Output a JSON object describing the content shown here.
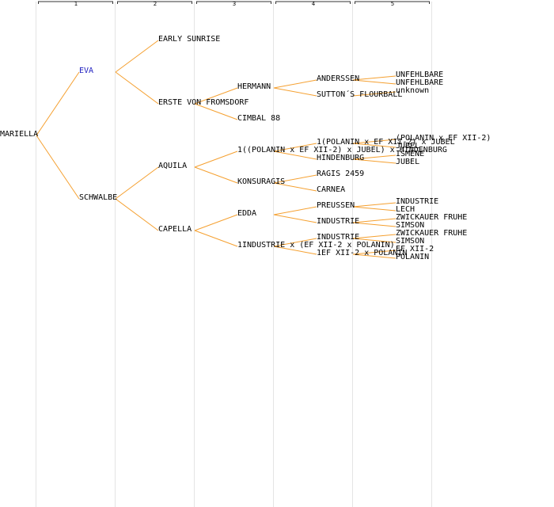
{
  "generations": [
    "1",
    "2",
    "3",
    "4",
    "5"
  ],
  "colors": {
    "link": "#f5a030",
    "divider": "#e4e4e4",
    "bracket": "#333333",
    "highlight": "#1f1fbf"
  },
  "tree": {
    "label": "MARIELLA",
    "children": [
      {
        "label": "EVA",
        "highlight": true,
        "children": [
          {
            "label": "EARLY SUNRISE"
          },
          {
            "label": "ERSTE VON FROMSDORF",
            "children": [
              {
                "label": "HERMANN",
                "children": [
                  {
                    "label": "ANDERSSEN",
                    "children": [
                      {
                        "label": "UNFEHLBARE"
                      },
                      {
                        "label": "UNFEHLBARE"
                      }
                    ]
                  },
                  {
                    "label": "SUTTON´S FLOURBALL",
                    "children": [
                      {
                        "label": "unknown"
                      }
                    ]
                  }
                ]
              },
              {
                "label": "CIMBAL 88"
              }
            ]
          }
        ]
      },
      {
        "label": "SCHWALBE",
        "children": [
          {
            "label": "AQUILA",
            "children": [
              {
                "label": "1((POLANIN x EF XII-2) x JUBEL) x HINDENBURG",
                "children": [
                  {
                    "label": "1(POLANIN x EF XII-2) x JUBEL",
                    "children": [
                      {
                        "label": "(POLANIN x EF XII-2)"
                      },
                      {
                        "label": "JUBEL"
                      }
                    ]
                  },
                  {
                    "label": "HINDENBURG",
                    "children": [
                      {
                        "label": "ISMENE"
                      },
                      {
                        "label": "JUBEL"
                      }
                    ]
                  }
                ]
              },
              {
                "label": "KONSURAGIS",
                "children": [
                  {
                    "label": "RAGIS 2459"
                  },
                  {
                    "label": "CARNEA"
                  }
                ]
              }
            ]
          },
          {
            "label": "CAPELLA",
            "children": [
              {
                "label": "EDDA",
                "children": [
                  {
                    "label": "PREUSSEN",
                    "children": [
                      {
                        "label": "INDUSTRIE"
                      },
                      {
                        "label": "LECH"
                      }
                    ]
                  },
                  {
                    "label": "INDUSTRIE",
                    "children": [
                      {
                        "label": "ZWICKAUER FRUHE"
                      },
                      {
                        "label": "SIMSON"
                      }
                    ]
                  }
                ]
              },
              {
                "label": "1INDUSTRIE x (EF XII-2 x POLANIN)",
                "children": [
                  {
                    "label": "INDUSTRIE",
                    "children": [
                      {
                        "label": "ZWICKAUER FRUHE"
                      },
                      {
                        "label": "SIMSON"
                      }
                    ]
                  },
                  {
                    "label": "1EF XII-2 x POLANIN",
                    "children": [
                      {
                        "label": "EF XII-2"
                      },
                      {
                        "label": "POLANIN"
                      }
                    ]
                  }
                ]
              }
            ]
          }
        ]
      }
    ]
  }
}
